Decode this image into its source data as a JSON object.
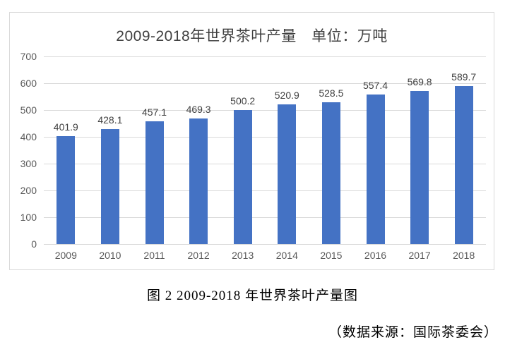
{
  "page": {
    "caption": "图 2 2009-2018 年世界茶叶产量图",
    "source": "（数据来源：国际茶委会）"
  },
  "chart_data": {
    "type": "bar",
    "title": "2009-2018年世界茶叶产量　单位：万吨",
    "categories": [
      "2009",
      "2010",
      "2011",
      "2012",
      "2013",
      "2014",
      "2015",
      "2016",
      "2017",
      "2018"
    ],
    "values": [
      401.9,
      428.1,
      457.1,
      469.3,
      500.2,
      520.9,
      528.5,
      557.4,
      569.8,
      589.7
    ],
    "xlabel": "",
    "ylabel": "",
    "ylim": [
      0,
      700
    ],
    "ytick_step": 100,
    "grid": true,
    "legend": "none",
    "data_labels": true,
    "colors": {
      "bar": "#4472c4",
      "gridline": "#d9d9d9",
      "axis_label": "#595959",
      "data_label": "#404040",
      "title": "#404040",
      "frame_border": "#d9d9d9"
    }
  }
}
